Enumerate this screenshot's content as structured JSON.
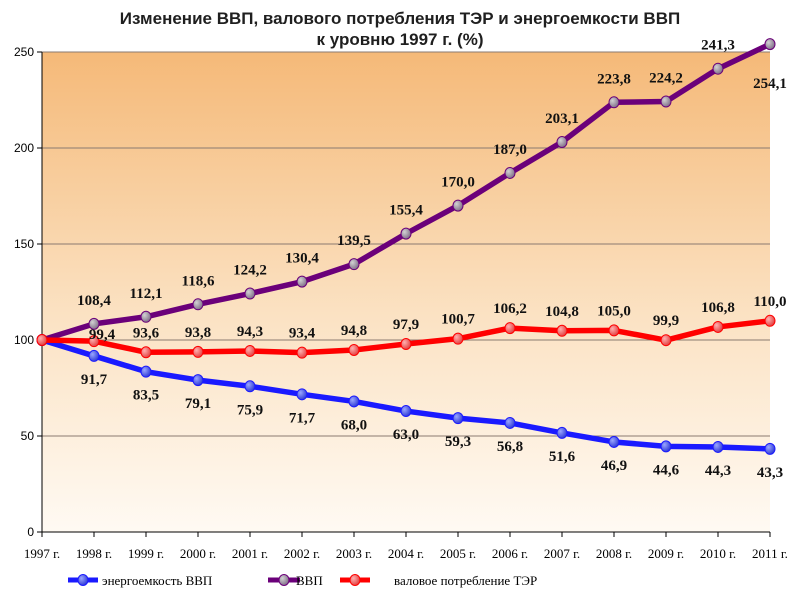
{
  "title_line1": "Изменение ВВП, валового потребления ТЭР и энергоемкости ВВП",
  "title_line2": "к уровню 1997 г. (%)",
  "chart_data": {
    "type": "line",
    "x": [
      "1997 г.",
      "1998 г.",
      "1999 г.",
      "2000 г.",
      "2001 г.",
      "2002 г.",
      "2003 г.",
      "2004 г.",
      "2005 г.",
      "2006 г.",
      "2007 г.",
      "2008 г.",
      "2009 г.",
      "2010 г.",
      "2011 г."
    ],
    "ylim": [
      0,
      250
    ],
    "yticks": [
      0,
      50,
      100,
      150,
      200,
      250
    ],
    "grid": true,
    "legend_position": "bottom",
    "series": [
      {
        "name": "энергоемкость ВВП",
        "color": "#1a1aff",
        "values": [
          100,
          91.7,
          83.5,
          79.1,
          75.9,
          71.7,
          68.0,
          63.0,
          59.3,
          56.8,
          51.6,
          46.9,
          44.6,
          44.3,
          43.3
        ],
        "labels": [
          "",
          "91,7",
          "83,5",
          "79,1",
          "75,9",
          "71,7",
          "68,0",
          "63,0",
          "59,3",
          "56,8",
          "51,6",
          "46,9",
          "44,6",
          "44,3",
          "43,3"
        ]
      },
      {
        "name": "ВВП",
        "color": "#6b007a",
        "values": [
          100,
          108.4,
          112.1,
          118.6,
          124.2,
          130.4,
          139.5,
          155.4,
          170.0,
          187.0,
          203.1,
          223.8,
          224.2,
          241.3,
          254.1
        ],
        "labels": [
          "",
          "108,4",
          "112,1",
          "118,6",
          "124,2",
          "130,4",
          "139,5",
          "155,4",
          "170,0",
          "187,0",
          "203,1",
          "223,8",
          "224,2",
          "241,3",
          "254,1"
        ]
      },
      {
        "name": "валовое потребление ТЭР",
        "color": "#ff0000",
        "values": [
          100,
          99.4,
          93.6,
          93.8,
          94.3,
          93.4,
          94.8,
          97.9,
          100.7,
          106.2,
          104.8,
          105.0,
          99.9,
          106.8,
          110.0
        ],
        "labels": [
          "",
          "99,4",
          "93,6",
          "93,8",
          "94,3",
          "93,4",
          "94,8",
          "97,9",
          "100,7",
          "106,2",
          "104,8",
          "105,0",
          "99,9",
          "106,8",
          "110,0"
        ]
      }
    ]
  }
}
